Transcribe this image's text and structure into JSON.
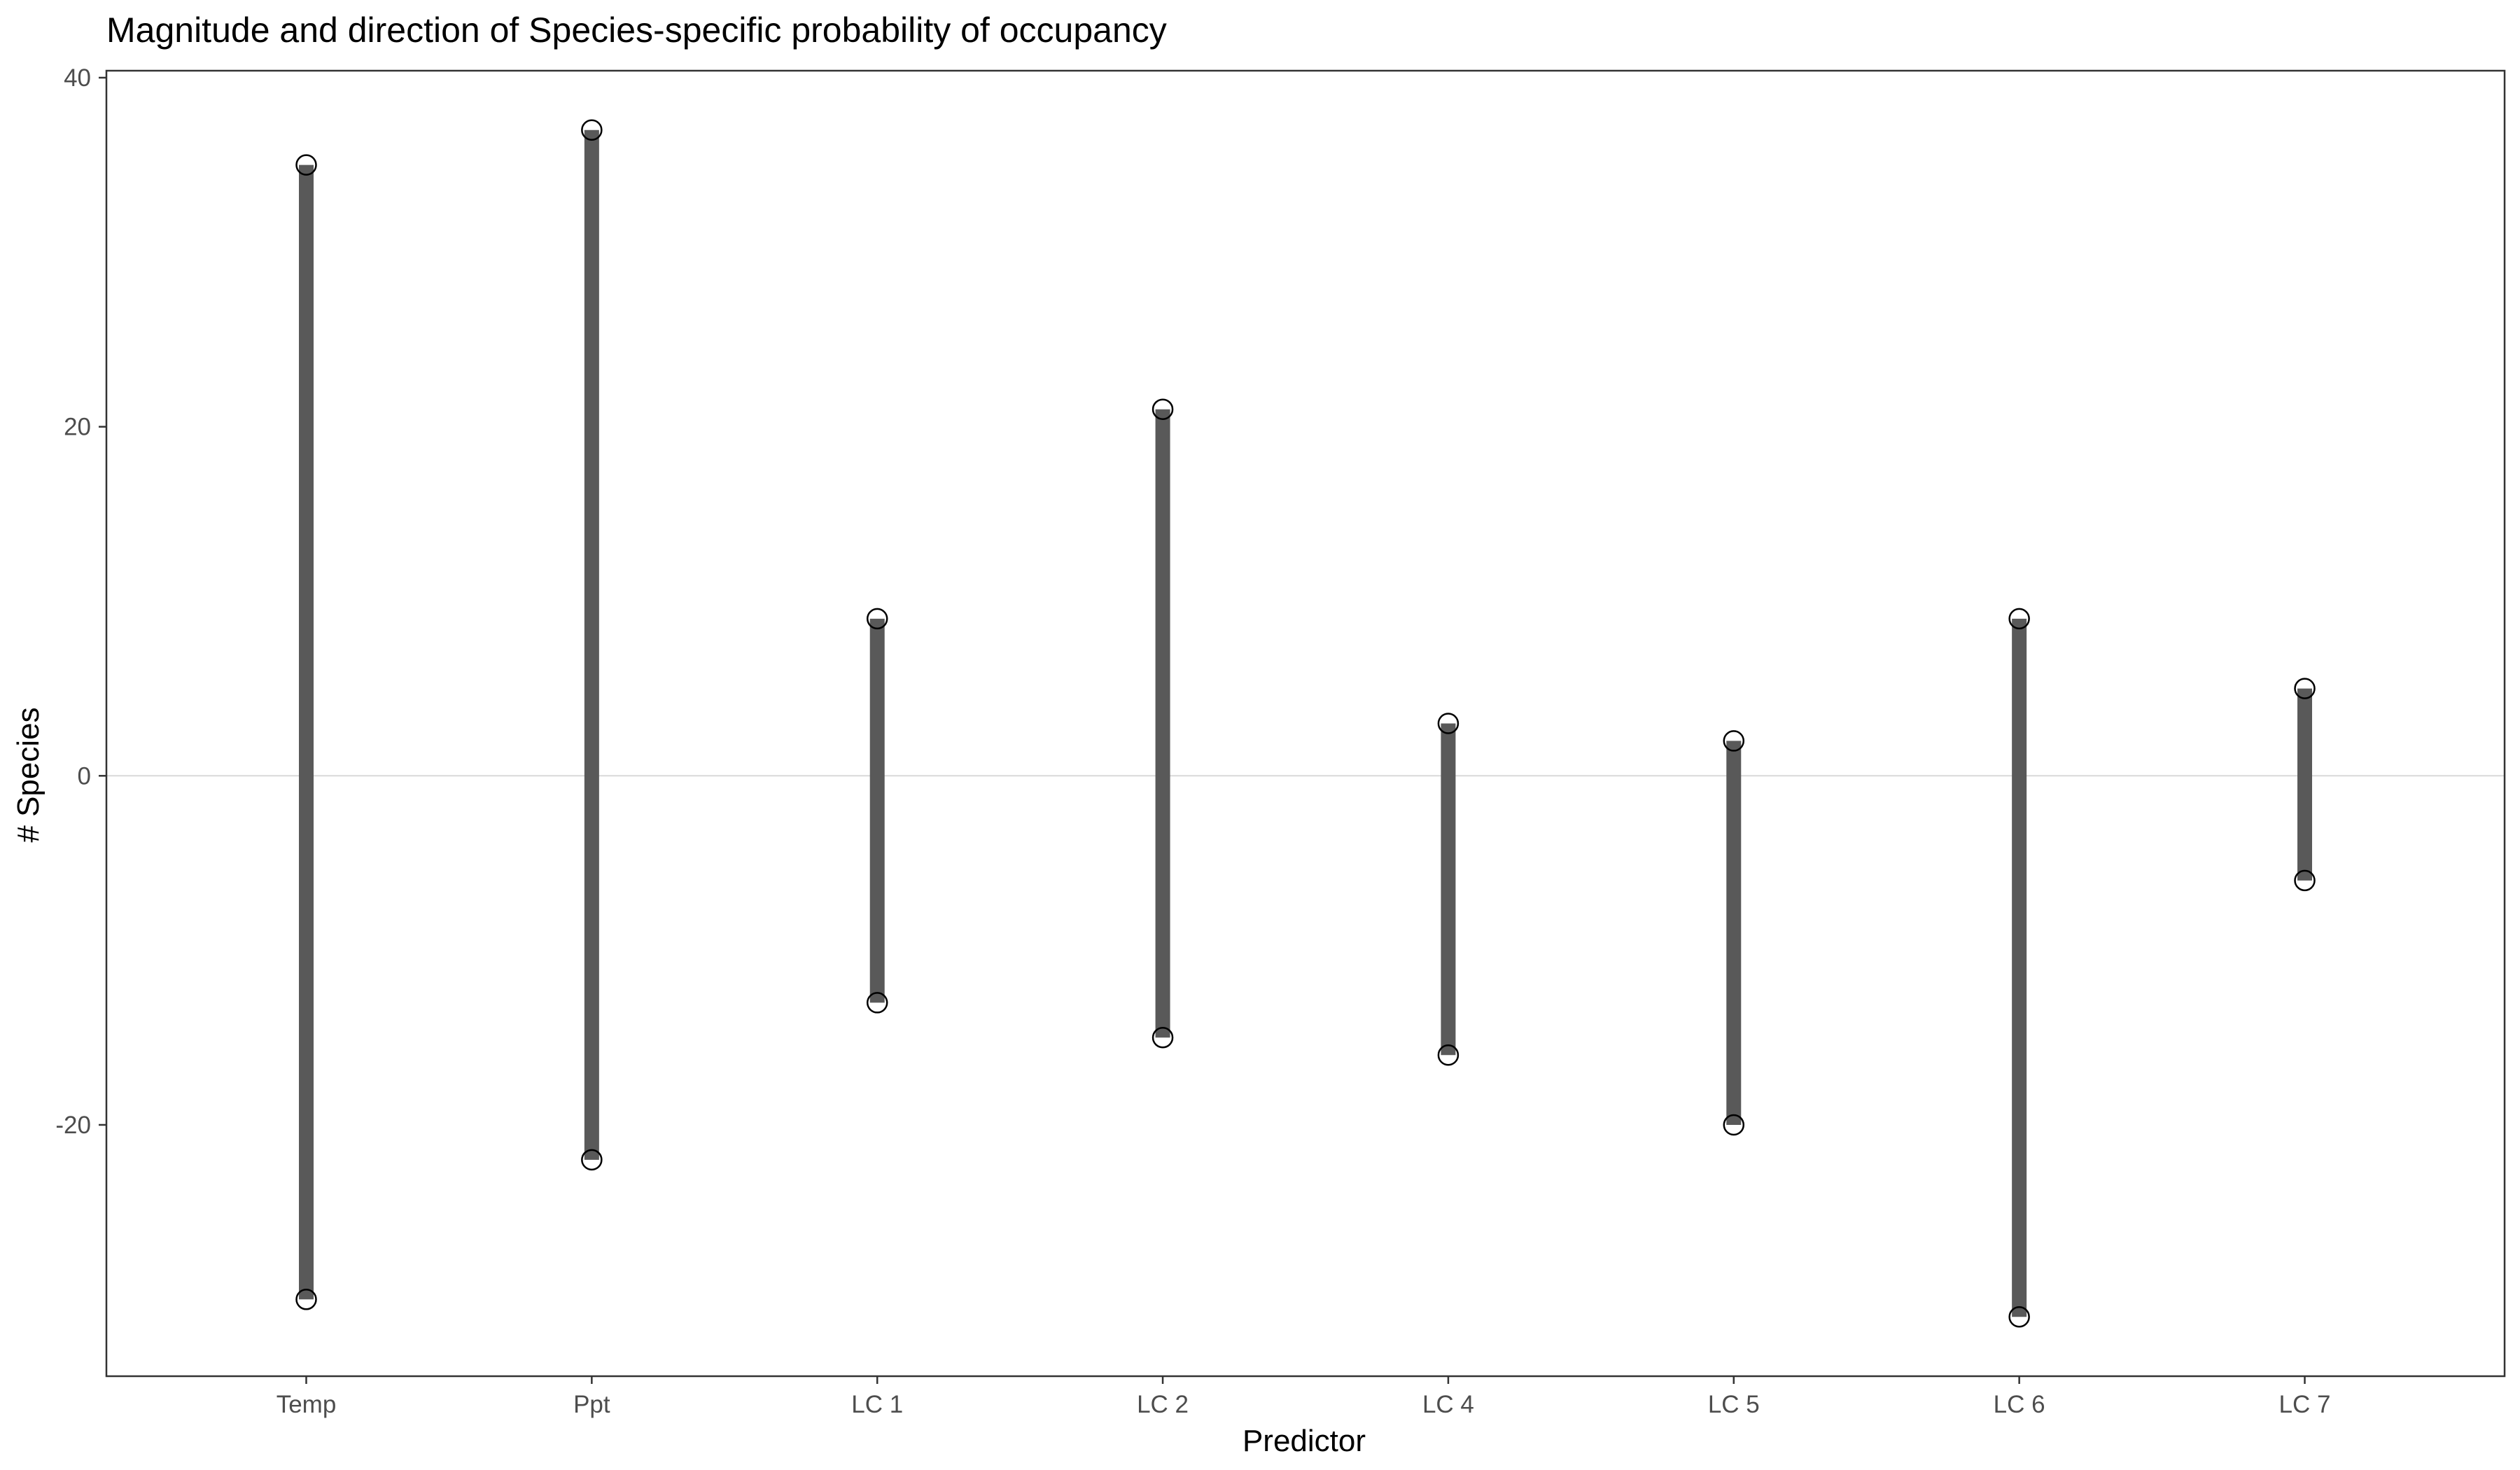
{
  "chart_data": {
    "type": "range",
    "title": "Magnitude and direction of Species-specific probability of occupancy",
    "xlabel": "Predictor",
    "ylabel": "# Species",
    "categories": [
      "Temp",
      "Ppt",
      "LC 1",
      "LC 2",
      "LC 4",
      "LC 5",
      "LC 6",
      "LC 7"
    ],
    "series": [
      {
        "values": [
          35,
          37,
          9,
          21,
          3,
          2,
          9,
          5
        ]
      },
      {
        "values": [
          -30,
          -22,
          -13,
          -15,
          -16,
          -20,
          -31,
          -6
        ]
      }
    ],
    "yticks": [
      -20,
      0,
      20,
      40
    ],
    "ytick_labels": [
      "-20",
      "0",
      "20",
      "40"
    ],
    "ylim": [
      -34.4,
      40.4
    ],
    "reference_line_y": 0,
    "grid": false,
    "legend": "none",
    "colors": {
      "segment": "#595959",
      "point_stroke": "#000000",
      "point_fill": "#ffffff",
      "reference_line": "#d9d9d9",
      "panel_border": "#333333",
      "tick_label": "#4d4d4d"
    }
  }
}
